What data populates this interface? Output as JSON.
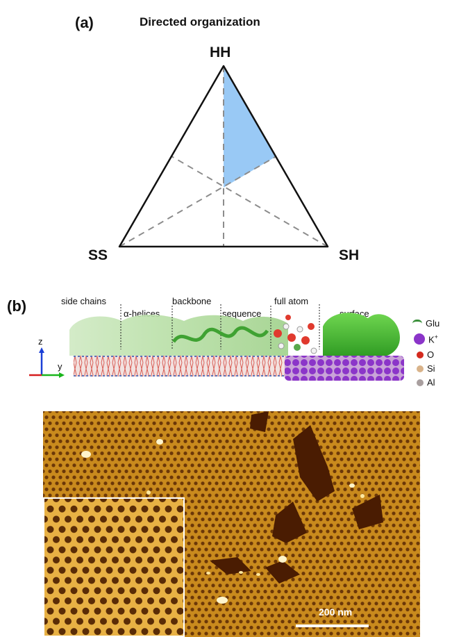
{
  "panel_a": {
    "label": "(a)",
    "title": "Directed organization",
    "vertices": {
      "top": "HH",
      "left": "SS",
      "right": "SH"
    }
  },
  "panel_b": {
    "label": "(b)",
    "level_labels": [
      "side chains",
      "α-helices",
      "backbone",
      "sequence",
      "full atom",
      "surface"
    ],
    "axes": {
      "z": "z",
      "y": "y"
    },
    "legend": [
      {
        "label": "Glu",
        "color": "#3a8f3a",
        "icon": "glu-residue-icon"
      },
      {
        "label": "K",
        "sup": "+",
        "color": "#8b35c9",
        "icon": "potassium-ion-icon"
      },
      {
        "label": "O",
        "color": "#d42a1e",
        "icon": "oxygen-atom-icon"
      },
      {
        "label": "Si",
        "color": "#d9b38a",
        "icon": "silicon-atom-icon"
      },
      {
        "label": "Al",
        "color": "#a99f9f",
        "icon": "aluminum-atom-icon"
      }
    ],
    "afm": {
      "scale_bar": "200 nm"
    }
  }
}
